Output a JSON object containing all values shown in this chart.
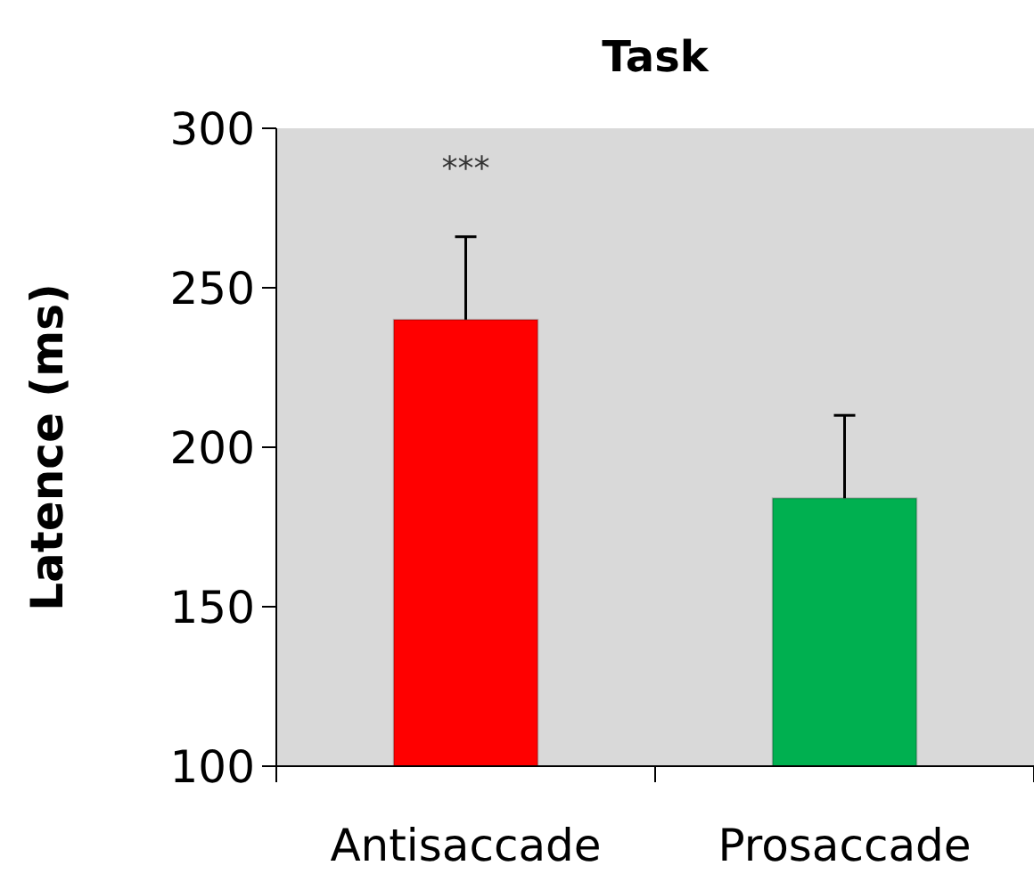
{
  "chart_data": {
    "type": "bar",
    "title": "Task",
    "ylabel": "Latence (ms)",
    "categories": [
      "Antisaccade",
      "Prosaccade"
    ],
    "values": [
      240,
      184
    ],
    "colors": [
      "#ff0000",
      "#00b050"
    ],
    "errors": [
      [
        240,
        266
      ],
      [
        184,
        210
      ]
    ],
    "ylim": [
      100,
      300
    ],
    "yticks": [
      100,
      150,
      200,
      250,
      300
    ],
    "annotations": [
      "***"
    ]
  }
}
